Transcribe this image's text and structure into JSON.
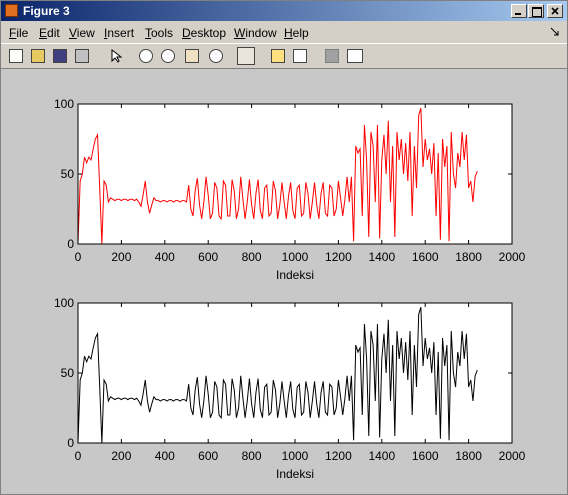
{
  "window": {
    "title": "Figure 3",
    "menu": [
      "File",
      "Edit",
      "View",
      "Insert",
      "Tools",
      "Desktop",
      "Window",
      "Help"
    ]
  },
  "chart_data": [
    {
      "type": "line",
      "xlabel": "Indeksi",
      "color": "#ff0000",
      "xlim": [
        0,
        2000
      ],
      "ylim": [
        0,
        100
      ],
      "xticks": [
        0,
        200,
        400,
        600,
        800,
        1000,
        1200,
        1400,
        1600,
        1800,
        2000
      ],
      "yticks": [
        0,
        50,
        100
      ],
      "x": [
        0,
        10,
        20,
        30,
        40,
        50,
        60,
        70,
        80,
        90,
        100,
        110,
        120,
        130,
        140,
        150,
        160,
        170,
        180,
        190,
        200,
        210,
        220,
        230,
        240,
        250,
        260,
        270,
        280,
        290,
        300,
        310,
        320,
        330,
        340,
        350,
        360,
        370,
        380,
        390,
        400,
        410,
        420,
        430,
        440,
        450,
        460,
        470,
        480,
        490,
        500,
        510,
        520,
        530,
        540,
        550,
        560,
        570,
        580,
        590,
        600,
        610,
        620,
        630,
        640,
        650,
        660,
        670,
        680,
        690,
        700,
        710,
        720,
        730,
        740,
        750,
        760,
        770,
        780,
        790,
        800,
        810,
        820,
        830,
        840,
        850,
        860,
        870,
        880,
        890,
        900,
        910,
        920,
        930,
        940,
        950,
        960,
        970,
        980,
        990,
        1000,
        1010,
        1020,
        1030,
        1040,
        1050,
        1060,
        1070,
        1080,
        1090,
        1100,
        1110,
        1120,
        1130,
        1140,
        1150,
        1160,
        1170,
        1180,
        1190,
        1200,
        1210,
        1220,
        1230,
        1240,
        1250,
        1260,
        1270,
        1280,
        1290,
        1300,
        1310,
        1320,
        1330,
        1340,
        1350,
        1360,
        1370,
        1380,
        1390,
        1400,
        1410,
        1420,
        1430,
        1440,
        1450,
        1460,
        1470,
        1480,
        1490,
        1500,
        1510,
        1520,
        1530,
        1540,
        1550,
        1560,
        1570,
        1580,
        1590,
        1600,
        1610,
        1620,
        1630,
        1640,
        1650,
        1660,
        1670,
        1680,
        1690,
        1700,
        1710,
        1720,
        1730,
        1740,
        1750,
        1760,
        1770,
        1780,
        1790,
        1800,
        1810,
        1820,
        1830,
        1840
      ],
      "values": [
        0,
        45,
        50,
        62,
        58,
        62,
        60,
        68,
        75,
        78,
        40,
        0,
        45,
        42,
        30,
        33,
        32,
        31,
        32,
        32,
        31,
        32,
        32,
        31,
        32,
        32,
        31,
        32,
        30,
        27,
        35,
        45,
        30,
        22,
        28,
        33,
        31,
        31,
        30,
        31,
        31,
        30,
        31,
        31,
        30,
        31,
        31,
        30,
        31,
        31,
        30,
        42,
        25,
        20,
        38,
        47,
        28,
        18,
        30,
        48,
        35,
        18,
        22,
        44,
        40,
        20,
        18,
        45,
        42,
        20,
        20,
        46,
        38,
        18,
        25,
        48,
        32,
        18,
        30,
        46,
        28,
        18,
        36,
        46,
        24,
        18,
        40,
        42,
        20,
        22,
        45,
        38,
        18,
        28,
        44,
        30,
        18,
        34,
        44,
        24,
        18,
        40,
        42,
        20,
        22,
        44,
        36,
        18,
        30,
        44,
        28,
        18,
        36,
        44,
        22,
        20,
        42,
        40,
        20,
        25,
        45,
        33,
        20,
        32,
        48,
        30,
        48,
        2,
        70,
        65,
        68,
        20,
        85,
        60,
        5,
        80,
        70,
        30,
        85,
        4,
        60,
        78,
        50,
        88,
        30,
        70,
        5,
        80,
        60,
        75,
        50,
        72,
        45,
        80,
        20,
        70,
        40,
        92,
        97,
        55,
        75,
        60,
        68,
        50,
        72,
        20,
        65,
        3,
        75,
        55,
        70,
        2,
        80,
        50,
        40,
        65,
        55,
        80,
        60,
        78,
        40,
        45,
        30,
        48,
        52
      ]
    },
    {
      "type": "line",
      "xlabel": "Indeksi",
      "color": "#000000",
      "xlim": [
        0,
        2000
      ],
      "ylim": [
        0,
        100
      ],
      "xticks": [
        0,
        200,
        400,
        600,
        800,
        1000,
        1200,
        1400,
        1600,
        1800,
        2000
      ],
      "yticks": [
        0,
        50,
        100
      ],
      "x": [
        0,
        10,
        20,
        30,
        40,
        50,
        60,
        70,
        80,
        90,
        100,
        110,
        120,
        130,
        140,
        150,
        160,
        170,
        180,
        190,
        200,
        210,
        220,
        230,
        240,
        250,
        260,
        270,
        280,
        290,
        300,
        310,
        320,
        330,
        340,
        350,
        360,
        370,
        380,
        390,
        400,
        410,
        420,
        430,
        440,
        450,
        460,
        470,
        480,
        490,
        500,
        510,
        520,
        530,
        540,
        550,
        560,
        570,
        580,
        590,
        600,
        610,
        620,
        630,
        640,
        650,
        660,
        670,
        680,
        690,
        700,
        710,
        720,
        730,
        740,
        750,
        760,
        770,
        780,
        790,
        800,
        810,
        820,
        830,
        840,
        850,
        860,
        870,
        880,
        890,
        900,
        910,
        920,
        930,
        940,
        950,
        960,
        970,
        980,
        990,
        1000,
        1010,
        1020,
        1030,
        1040,
        1050,
        1060,
        1070,
        1080,
        1090,
        1100,
        1110,
        1120,
        1130,
        1140,
        1150,
        1160,
        1170,
        1180,
        1190,
        1200,
        1210,
        1220,
        1230,
        1240,
        1250,
        1260,
        1270,
        1280,
        1290,
        1300,
        1310,
        1320,
        1330,
        1340,
        1350,
        1360,
        1370,
        1380,
        1390,
        1400,
        1410,
        1420,
        1430,
        1440,
        1450,
        1460,
        1470,
        1480,
        1490,
        1500,
        1510,
        1520,
        1530,
        1540,
        1550,
        1560,
        1570,
        1580,
        1590,
        1600,
        1610,
        1620,
        1630,
        1640,
        1650,
        1660,
        1670,
        1680,
        1690,
        1700,
        1710,
        1720,
        1730,
        1740,
        1750,
        1760,
        1770,
        1780,
        1790,
        1800,
        1810,
        1820,
        1830,
        1840
      ],
      "values": [
        0,
        45,
        50,
        62,
        58,
        62,
        60,
        68,
        75,
        78,
        40,
        0,
        45,
        42,
        30,
        33,
        32,
        31,
        32,
        32,
        31,
        32,
        32,
        31,
        32,
        32,
        31,
        32,
        30,
        27,
        35,
        45,
        30,
        22,
        28,
        33,
        31,
        31,
        30,
        31,
        31,
        30,
        31,
        31,
        30,
        31,
        31,
        30,
        31,
        31,
        30,
        42,
        25,
        20,
        38,
        47,
        28,
        18,
        30,
        48,
        35,
        18,
        22,
        44,
        40,
        20,
        18,
        45,
        42,
        20,
        20,
        46,
        38,
        18,
        25,
        48,
        32,
        18,
        30,
        46,
        28,
        18,
        36,
        46,
        24,
        18,
        40,
        42,
        20,
        22,
        45,
        38,
        18,
        28,
        44,
        30,
        18,
        34,
        44,
        24,
        18,
        40,
        42,
        20,
        22,
        44,
        36,
        18,
        30,
        44,
        28,
        18,
        36,
        44,
        22,
        20,
        42,
        40,
        20,
        25,
        45,
        33,
        20,
        32,
        48,
        30,
        48,
        2,
        70,
        65,
        68,
        20,
        85,
        60,
        5,
        80,
        70,
        30,
        85,
        4,
        60,
        78,
        50,
        88,
        30,
        70,
        5,
        80,
        60,
        75,
        50,
        72,
        45,
        80,
        20,
        70,
        40,
        92,
        97,
        55,
        75,
        60,
        68,
        50,
        72,
        20,
        65,
        3,
        75,
        55,
        70,
        2,
        80,
        50,
        40,
        65,
        55,
        80,
        60,
        78,
        40,
        45,
        30,
        48,
        52
      ]
    }
  ]
}
